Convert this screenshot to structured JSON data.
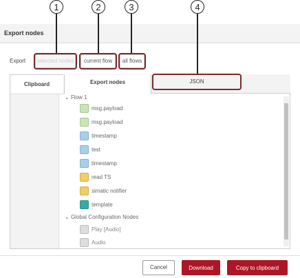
{
  "callouts": [
    "1",
    "2",
    "3",
    "4"
  ],
  "header": {
    "title": "Export nodes"
  },
  "export": {
    "label": "Export",
    "options": [
      "selected nodes",
      "current flow",
      "all flows"
    ]
  },
  "tabs": {
    "side": "Clipboard",
    "top": [
      "Export nodes",
      "JSON"
    ]
  },
  "tree": [
    {
      "group": "Flow 1",
      "items": [
        "msg.payload",
        "msg.payload",
        "timestamp",
        "test",
        "timestamp",
        "read TS",
        "simatic notifier",
        "template"
      ]
    },
    {
      "group": "Global Configuration Nodes",
      "items": [
        "Play [Audio]",
        "Audio"
      ]
    }
  ],
  "footer": [
    "Cancel",
    "Download",
    "Copy to clipboard"
  ]
}
